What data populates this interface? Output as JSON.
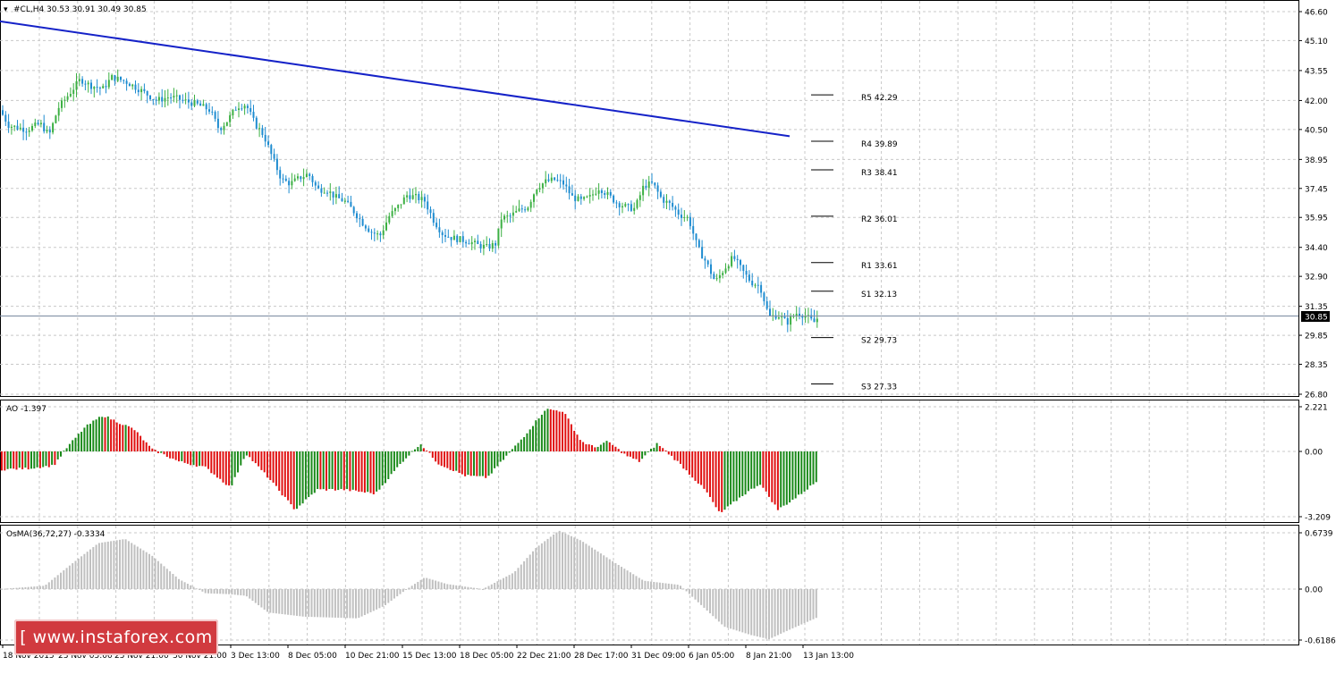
{
  "main_header": "#CL,H4  30.53 30.91 30.49 30.85",
  "current_price": "30.85",
  "price_axis": [
    "46.60",
    "45.10",
    "43.55",
    "42.00",
    "40.50",
    "38.95",
    "37.45",
    "35.95",
    "34.40",
    "32.90",
    "31.35",
    "29.85",
    "28.35",
    "26.80"
  ],
  "pivots": [
    {
      "label": "R5 42.29"
    },
    {
      "label": "R4 39.89"
    },
    {
      "label": "R3 38.41"
    },
    {
      "label": "R2 36.01"
    },
    {
      "label": "R1 33.61"
    },
    {
      "label": "S1 32.13"
    },
    {
      "label": "S2 29.73"
    },
    {
      "label": "S3 27.33"
    }
  ],
  "ao_header": "AO -1.397",
  "ao_axis": [
    "2.221",
    "0.00",
    "-3.209"
  ],
  "osma_header": "OsMA(36,72,27) -0.3334",
  "osma_axis": [
    "0.6739",
    "0.00",
    "-0.6186"
  ],
  "time_axis": [
    "18 Nov 2015",
    "23 Nov 05:00",
    "25 Nov 21:00",
    "30 Nov 21:00",
    "3 Dec 13:00",
    "8 Dec 05:00",
    "10 Dec 21:00",
    "15 Dec 13:00",
    "18 Dec 05:00",
    "22 Dec 21:00",
    "28 Dec 17:00",
    "31 Dec 09:00",
    "6 Jan 05:00",
    "8 Jan 21:00",
    "13 Jan 13:00"
  ],
  "logo_text": "[ www.instaforex.com ]",
  "colors": {
    "bull": "#3cb043",
    "bear": "#1e8cd0",
    "ao_up": "#1a8a1a",
    "ao_down": "#e01010",
    "osma": "#c0c0c0",
    "trendline": "#1522c8",
    "grid": "#c8c8c8"
  },
  "chart_data": {
    "type": "candlestick",
    "symbol": "#CL",
    "timeframe": "H4",
    "last_ohlc": {
      "open": 30.53,
      "high": 30.91,
      "low": 30.49,
      "close": 30.85
    },
    "approx_path": [
      [
        0,
        41.5
      ],
      [
        10,
        40.7
      ],
      [
        30,
        40.5
      ],
      [
        45,
        40.8
      ],
      [
        55,
        40.2
      ],
      [
        65,
        41.6
      ],
      [
        75,
        42.2
      ],
      [
        90,
        43.1
      ],
      [
        100,
        42.8
      ],
      [
        115,
        42.6
      ],
      [
        125,
        43.2
      ],
      [
        140,
        43.0
      ],
      [
        155,
        42.6
      ],
      [
        165,
        42.3
      ],
      [
        175,
        42.0
      ],
      [
        190,
        42.2
      ],
      [
        205,
        42.0
      ],
      [
        220,
        41.8
      ],
      [
        235,
        41.5
      ],
      [
        245,
        40.5
      ],
      [
        255,
        41.0
      ],
      [
        265,
        41.7
      ],
      [
        275,
        41.8
      ],
      [
        285,
        40.8
      ],
      [
        295,
        40.2
      ],
      [
        305,
        39.0
      ],
      [
        315,
        37.9
      ],
      [
        325,
        37.7
      ],
      [
        335,
        38.0
      ],
      [
        345,
        38.2
      ],
      [
        355,
        37.4
      ],
      [
        365,
        37.4
      ],
      [
        375,
        37.0
      ],
      [
        385,
        36.8
      ],
      [
        395,
        36.3
      ],
      [
        405,
        35.7
      ],
      [
        415,
        35.2
      ],
      [
        425,
        35.0
      ],
      [
        435,
        36.0
      ],
      [
        445,
        36.5
      ],
      [
        455,
        37.1
      ],
      [
        465,
        37.0
      ],
      [
        475,
        36.8
      ],
      [
        485,
        35.8
      ],
      [
        495,
        35.1
      ],
      [
        505,
        34.9
      ],
      [
        515,
        34.8
      ],
      [
        525,
        34.7
      ],
      [
        535,
        34.5
      ],
      [
        545,
        34.4
      ],
      [
        555,
        34.6
      ],
      [
        560,
        35.9
      ],
      [
        570,
        36.0
      ],
      [
        580,
        36.3
      ],
      [
        590,
        36.5
      ],
      [
        600,
        37.5
      ],
      [
        610,
        37.8
      ],
      [
        620,
        37.9
      ],
      [
        630,
        37.7
      ],
      [
        640,
        37.0
      ],
      [
        650,
        36.8
      ],
      [
        660,
        37.0
      ],
      [
        670,
        37.5
      ],
      [
        680,
        37.1
      ],
      [
        690,
        36.7
      ],
      [
        700,
        36.5
      ],
      [
        710,
        36.4
      ],
      [
        720,
        37.6
      ],
      [
        730,
        37.7
      ],
      [
        740,
        36.9
      ],
      [
        750,
        36.6
      ],
      [
        760,
        36.1
      ],
      [
        770,
        35.9
      ],
      [
        780,
        34.4
      ],
      [
        790,
        33.6
      ],
      [
        800,
        32.6
      ],
      [
        810,
        33.3
      ],
      [
        820,
        33.9
      ],
      [
        830,
        33.2
      ],
      [
        840,
        32.6
      ],
      [
        850,
        32.4
      ],
      [
        860,
        30.8
      ],
      [
        870,
        30.9
      ],
      [
        880,
        30.5
      ],
      [
        890,
        31.0
      ],
      [
        900,
        30.9
      ],
      [
        910,
        30.5
      ],
      [
        916,
        30.85
      ]
    ],
    "trendline": [
      {
        "x": 0,
        "y": 46.1
      },
      {
        "x": 883,
        "y": 40.15
      }
    ],
    "pivot_levels": [
      42.29,
      39.89,
      38.41,
      36.01,
      33.61,
      32.13,
      29.73,
      27.33
    ],
    "ylim": [
      26.8,
      46.6
    ],
    "ao": {
      "ylim": [
        -3.209,
        2.221
      ],
      "last": -1.397
    },
    "osma": {
      "ylim": [
        -0.6186,
        0.6739
      ],
      "last": -0.3334,
      "params": [
        36,
        72,
        27
      ]
    }
  }
}
